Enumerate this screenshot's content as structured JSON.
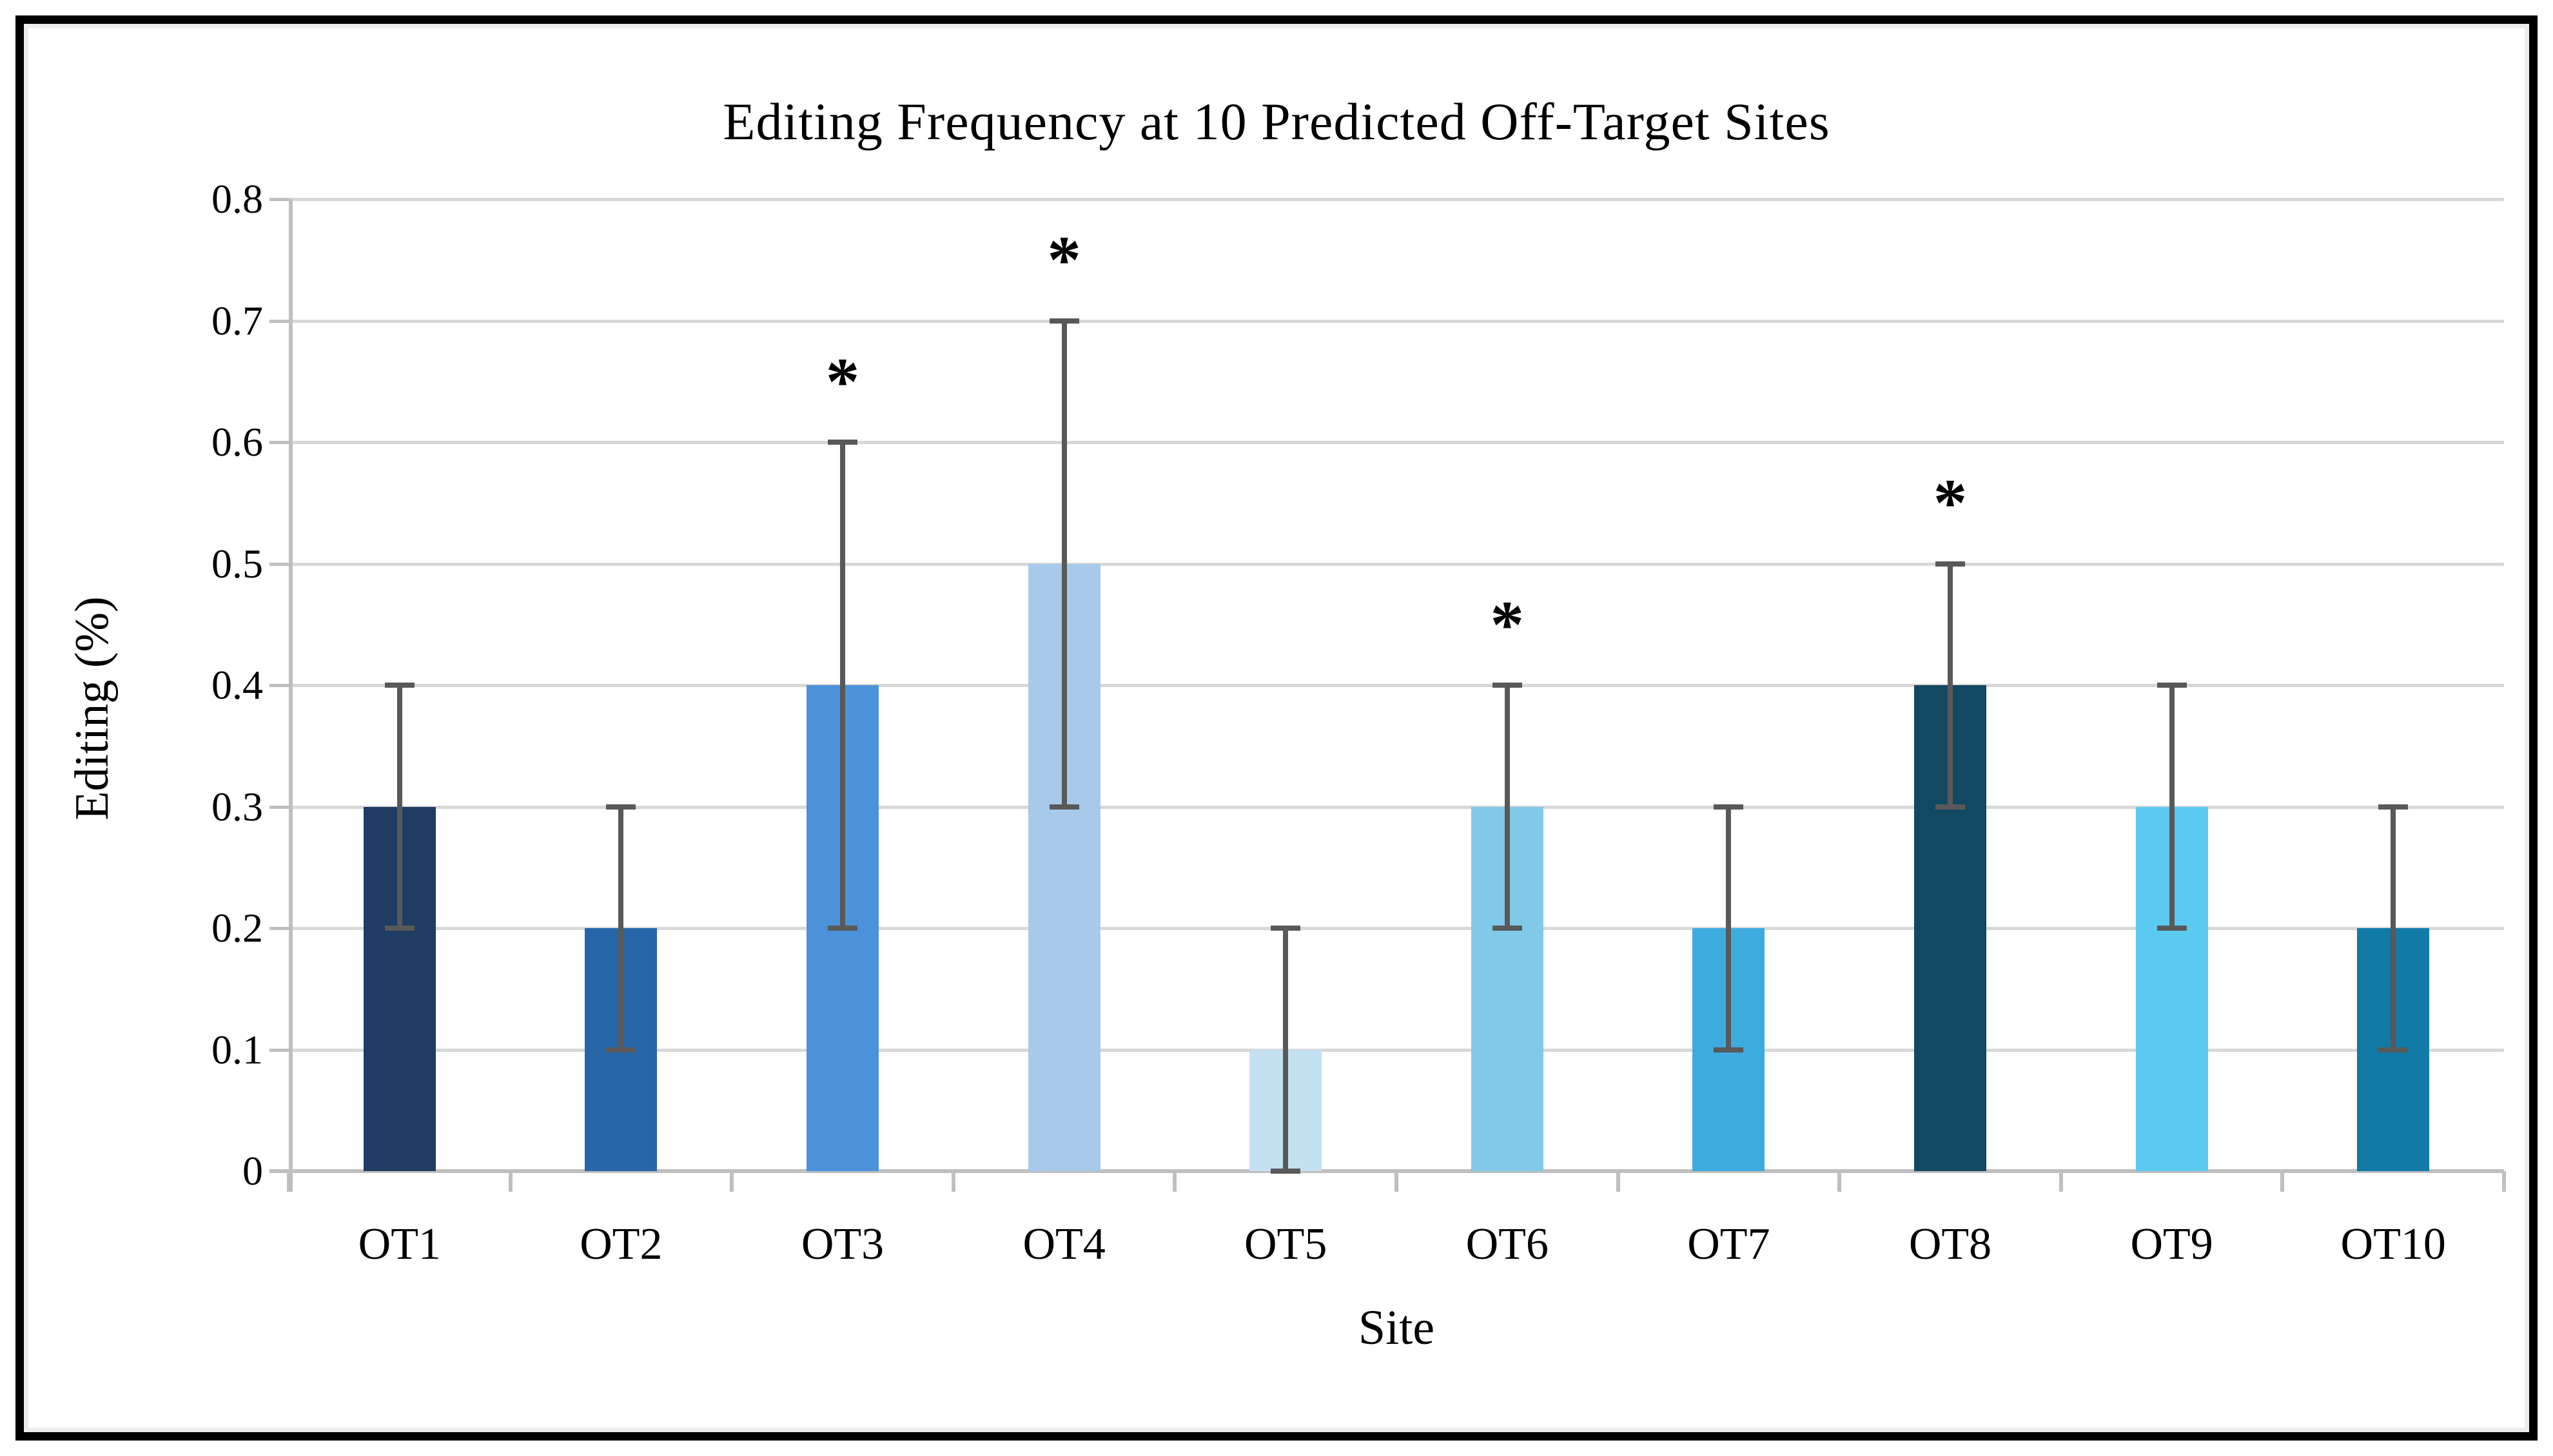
{
  "frame": {
    "background": "#ffffff",
    "border_color": "#000000",
    "inner_edge_color": "#ededed"
  },
  "chart_data": {
    "type": "bar",
    "title": "Editing Frequency at 10 Predicted Off-Target Sites",
    "xlabel": "Site",
    "ylabel": "Editing (%)",
    "ylim": [
      0,
      0.8
    ],
    "ytick_step": 0.1,
    "ytick_labels": [
      "0",
      "0.1",
      "0.2",
      "0.3",
      "0.4",
      "0.5",
      "0.6",
      "0.7",
      "0.8"
    ],
    "grid": true,
    "legend": false,
    "categories": [
      "OT1",
      "OT2",
      "OT3",
      "OT4",
      "OT5",
      "OT6",
      "OT7",
      "OT8",
      "OT9",
      "OT10"
    ],
    "values": [
      0.3,
      0.2,
      0.4,
      0.5,
      0.1,
      0.3,
      0.2,
      0.4,
      0.3,
      0.2
    ],
    "error_low": [
      0.2,
      0.1,
      0.2,
      0.3,
      0.0,
      0.2,
      0.1,
      0.3,
      0.2,
      0.1
    ],
    "error_high": [
      0.4,
      0.3,
      0.6,
      0.7,
      0.2,
      0.4,
      0.3,
      0.5,
      0.4,
      0.3
    ],
    "significant": [
      false,
      false,
      true,
      true,
      false,
      true,
      false,
      true,
      false,
      false
    ],
    "significance_marker": "*",
    "bar_colors": [
      "#1f3c63",
      "#2666a8",
      "#4c92da",
      "#a7caeb",
      "#c4e1f2",
      "#81c9e9",
      "#3eabdf",
      "#134862",
      "#5cc9f0",
      "#117aa7"
    ],
    "error_bar_color": "#595959",
    "gridline_color": "#d8d8d8",
    "axis_line_color": "#bfbfbf"
  }
}
